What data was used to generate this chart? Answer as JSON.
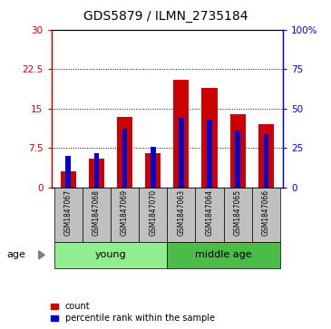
{
  "title": "GDS5879 / ILMN_2735184",
  "samples": [
    "GSM1847067",
    "GSM1847068",
    "GSM1847069",
    "GSM1847070",
    "GSM1847063",
    "GSM1847064",
    "GSM1847065",
    "GSM1847066"
  ],
  "count_values": [
    3.0,
    5.5,
    13.5,
    6.5,
    20.5,
    19.0,
    14.0,
    12.0
  ],
  "percentile_values": [
    20,
    22,
    37,
    26,
    44,
    43,
    36,
    34
  ],
  "ylim_left": [
    0,
    30
  ],
  "ylim_right": [
    0,
    100
  ],
  "yticks_left": [
    0,
    7.5,
    15,
    22.5,
    30
  ],
  "ytick_labels_left": [
    "0",
    "7.5",
    "15",
    "22.5",
    "30"
  ],
  "yticks_right": [
    0,
    25,
    50,
    75,
    100
  ],
  "ytick_labels_right": [
    "0",
    "25",
    "50",
    "75",
    "100%"
  ],
  "group_young_label": "young",
  "group_ma_label": "middle age",
  "group_color_young": "#90EE90",
  "group_color_ma": "#4CBB47",
  "bar_color_red": "#CC0000",
  "bar_color_blue": "#0000CC",
  "bar_width": 0.55,
  "blue_bar_width": 0.18,
  "bg_color_xtick": "#C0C0C0",
  "age_label": "age",
  "legend_count": "count",
  "legend_percentile": "percentile rank within the sample",
  "left_axis_color": "#CC0000",
  "right_axis_color": "#0000CC",
  "title_fontsize": 10,
  "tick_fontsize": 7.5,
  "sample_fontsize": 5.5,
  "group_fontsize": 8,
  "legend_fontsize": 7
}
